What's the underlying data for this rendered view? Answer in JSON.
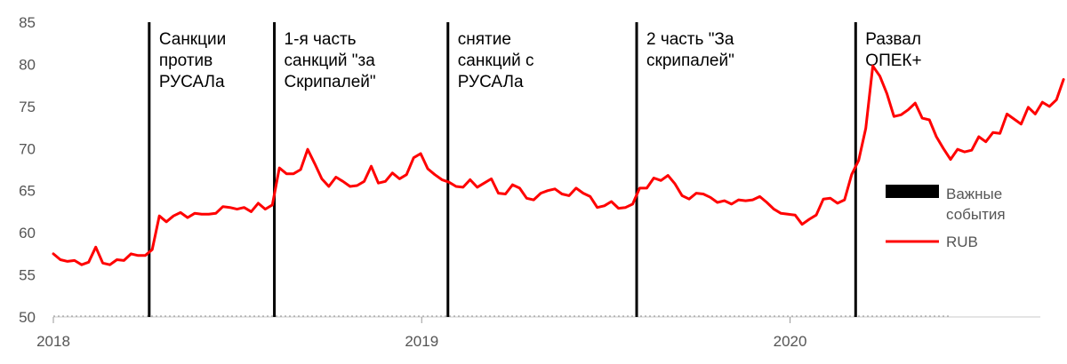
{
  "chart_data": {
    "type": "line",
    "x_axis": {
      "type": "date",
      "range": [
        "2018-01-01",
        "2020-09-05"
      ],
      "tick_labels": [
        {
          "date": "2018-01-01",
          "label": "2018"
        },
        {
          "date": "2019-01-01",
          "label": "2019"
        },
        {
          "date": "2020-01-01",
          "label": "2020"
        }
      ]
    },
    "y_axis": {
      "range": [
        50,
        85
      ],
      "ticks": [
        50,
        55,
        60,
        65,
        70,
        75,
        80,
        85
      ]
    },
    "grid": false,
    "legend": {
      "placement": "right",
      "entries": [
        {
          "label": "Важные события",
          "kind": "bar",
          "color": "#000000"
        },
        {
          "label": "RUB",
          "kind": "line",
          "color": "#ff0000"
        }
      ]
    },
    "events": [
      {
        "date": "2018-04-06",
        "label": [
          "Санкции",
          "против",
          "РУСАЛа"
        ]
      },
      {
        "date": "2018-08-08",
        "label": [
          "1-я часть",
          "санкций \"за",
          "Скрипалей\""
        ]
      },
      {
        "date": "2019-01-27",
        "label": [
          "снятие",
          "санкций с",
          "РУСАЛа"
        ]
      },
      {
        "date": "2019-08-02",
        "label": [
          "2 часть \"За",
          "скрипалей\""
        ]
      },
      {
        "date": "2020-03-06",
        "label": [
          "Развал",
          "ОПЕК+"
        ]
      }
    ],
    "series": [
      {
        "name": "RUB",
        "color": "#ff0000",
        "points": [
          [
            "2018-01-01",
            57.5
          ],
          [
            "2018-01-08",
            56.8
          ],
          [
            "2018-01-15",
            56.6
          ],
          [
            "2018-01-22",
            56.7
          ],
          [
            "2018-01-29",
            56.2
          ],
          [
            "2018-02-05",
            56.5
          ],
          [
            "2018-02-12",
            58.3
          ],
          [
            "2018-02-19",
            56.4
          ],
          [
            "2018-02-26",
            56.2
          ],
          [
            "2018-03-05",
            56.8
          ],
          [
            "2018-03-12",
            56.7
          ],
          [
            "2018-03-19",
            57.5
          ],
          [
            "2018-03-26",
            57.3
          ],
          [
            "2018-04-02",
            57.3
          ],
          [
            "2018-04-09",
            58.0
          ],
          [
            "2018-04-16",
            62.0
          ],
          [
            "2018-04-23",
            61.3
          ],
          [
            "2018-04-30",
            62.0
          ],
          [
            "2018-05-07",
            62.4
          ],
          [
            "2018-05-14",
            61.8
          ],
          [
            "2018-05-21",
            62.3
          ],
          [
            "2018-05-28",
            62.2
          ],
          [
            "2018-06-04",
            62.2
          ],
          [
            "2018-06-11",
            62.3
          ],
          [
            "2018-06-18",
            63.1
          ],
          [
            "2018-06-25",
            63.0
          ],
          [
            "2018-07-02",
            62.8
          ],
          [
            "2018-07-09",
            63.0
          ],
          [
            "2018-07-16",
            62.5
          ],
          [
            "2018-07-23",
            63.5
          ],
          [
            "2018-07-30",
            62.8
          ],
          [
            "2018-08-06",
            63.3
          ],
          [
            "2018-08-13",
            67.7
          ],
          [
            "2018-08-20",
            67.0
          ],
          [
            "2018-08-27",
            67.0
          ],
          [
            "2018-09-03",
            67.5
          ],
          [
            "2018-09-10",
            69.9
          ],
          [
            "2018-09-17",
            68.2
          ],
          [
            "2018-09-24",
            66.4
          ],
          [
            "2018-10-01",
            65.5
          ],
          [
            "2018-10-08",
            66.6
          ],
          [
            "2018-10-15",
            66.1
          ],
          [
            "2018-10-22",
            65.5
          ],
          [
            "2018-10-29",
            65.6
          ],
          [
            "2018-11-05",
            66.1
          ],
          [
            "2018-11-12",
            67.9
          ],
          [
            "2018-11-19",
            65.9
          ],
          [
            "2018-11-26",
            66.1
          ],
          [
            "2018-12-03",
            67.1
          ],
          [
            "2018-12-10",
            66.4
          ],
          [
            "2018-12-17",
            66.9
          ],
          [
            "2018-12-24",
            68.9
          ],
          [
            "2018-12-31",
            69.4
          ],
          [
            "2019-01-07",
            67.6
          ],
          [
            "2019-01-14",
            66.9
          ],
          [
            "2019-01-21",
            66.3
          ],
          [
            "2019-01-28",
            66.0
          ],
          [
            "2019-02-04",
            65.5
          ],
          [
            "2019-02-11",
            65.4
          ],
          [
            "2019-02-18",
            66.3
          ],
          [
            "2019-02-25",
            65.4
          ],
          [
            "2019-03-04",
            65.9
          ],
          [
            "2019-03-11",
            66.4
          ],
          [
            "2019-03-18",
            64.7
          ],
          [
            "2019-03-25",
            64.6
          ],
          [
            "2019-04-01",
            65.7
          ],
          [
            "2019-04-08",
            65.3
          ],
          [
            "2019-04-15",
            64.1
          ],
          [
            "2019-04-22",
            63.9
          ],
          [
            "2019-04-29",
            64.7
          ],
          [
            "2019-05-06",
            65.0
          ],
          [
            "2019-05-13",
            65.2
          ],
          [
            "2019-05-20",
            64.6
          ],
          [
            "2019-05-27",
            64.4
          ],
          [
            "2019-06-03",
            65.3
          ],
          [
            "2019-06-10",
            64.7
          ],
          [
            "2019-06-17",
            64.3
          ],
          [
            "2019-06-24",
            63.0
          ],
          [
            "2019-07-01",
            63.2
          ],
          [
            "2019-07-08",
            63.7
          ],
          [
            "2019-07-15",
            62.9
          ],
          [
            "2019-07-22",
            63.0
          ],
          [
            "2019-07-29",
            63.4
          ],
          [
            "2019-08-05",
            65.3
          ],
          [
            "2019-08-12",
            65.3
          ],
          [
            "2019-08-19",
            66.5
          ],
          [
            "2019-08-26",
            66.2
          ],
          [
            "2019-09-02",
            66.8
          ],
          [
            "2019-09-09",
            65.8
          ],
          [
            "2019-09-16",
            64.4
          ],
          [
            "2019-09-23",
            64.0
          ],
          [
            "2019-09-30",
            64.7
          ],
          [
            "2019-10-07",
            64.6
          ],
          [
            "2019-10-14",
            64.2
          ],
          [
            "2019-10-21",
            63.6
          ],
          [
            "2019-10-28",
            63.8
          ],
          [
            "2019-11-04",
            63.4
          ],
          [
            "2019-11-11",
            63.9
          ],
          [
            "2019-11-18",
            63.8
          ],
          [
            "2019-11-25",
            63.9
          ],
          [
            "2019-12-02",
            64.3
          ],
          [
            "2019-12-09",
            63.6
          ],
          [
            "2019-12-16",
            62.8
          ],
          [
            "2019-12-23",
            62.3
          ],
          [
            "2019-12-30",
            62.2
          ],
          [
            "2020-01-06",
            62.1
          ],
          [
            "2020-01-13",
            61.0
          ],
          [
            "2020-01-20",
            61.6
          ],
          [
            "2020-01-27",
            62.1
          ],
          [
            "2020-02-03",
            64.0
          ],
          [
            "2020-02-10",
            64.1
          ],
          [
            "2020-02-17",
            63.5
          ],
          [
            "2020-02-24",
            63.9
          ],
          [
            "2020-03-02",
            66.9
          ],
          [
            "2020-03-09",
            68.6
          ],
          [
            "2020-03-16",
            72.4
          ],
          [
            "2020-03-23",
            79.8
          ],
          [
            "2020-03-30",
            78.6
          ],
          [
            "2020-04-06",
            76.5
          ],
          [
            "2020-04-13",
            73.8
          ],
          [
            "2020-04-20",
            74.0
          ],
          [
            "2020-04-27",
            74.6
          ],
          [
            "2020-05-04",
            75.4
          ],
          [
            "2020-05-11",
            73.6
          ],
          [
            "2020-05-18",
            73.4
          ],
          [
            "2020-05-25",
            71.4
          ],
          [
            "2020-06-01",
            70.0
          ],
          [
            "2020-06-08",
            68.7
          ],
          [
            "2020-06-15",
            69.9
          ],
          [
            "2020-06-22",
            69.6
          ],
          [
            "2020-06-29",
            69.8
          ],
          [
            "2020-07-06",
            71.4
          ],
          [
            "2020-07-13",
            70.8
          ],
          [
            "2020-07-20",
            71.9
          ],
          [
            "2020-07-27",
            71.8
          ],
          [
            "2020-08-03",
            74.1
          ],
          [
            "2020-08-10",
            73.5
          ],
          [
            "2020-08-17",
            72.9
          ],
          [
            "2020-08-24",
            74.9
          ],
          [
            "2020-08-31",
            74.1
          ],
          [
            "2020-09-07",
            75.5
          ],
          [
            "2020-09-14",
            75.0
          ],
          [
            "2020-09-21",
            75.8
          ],
          [
            "2020-09-28",
            78.2
          ]
        ]
      }
    ]
  }
}
